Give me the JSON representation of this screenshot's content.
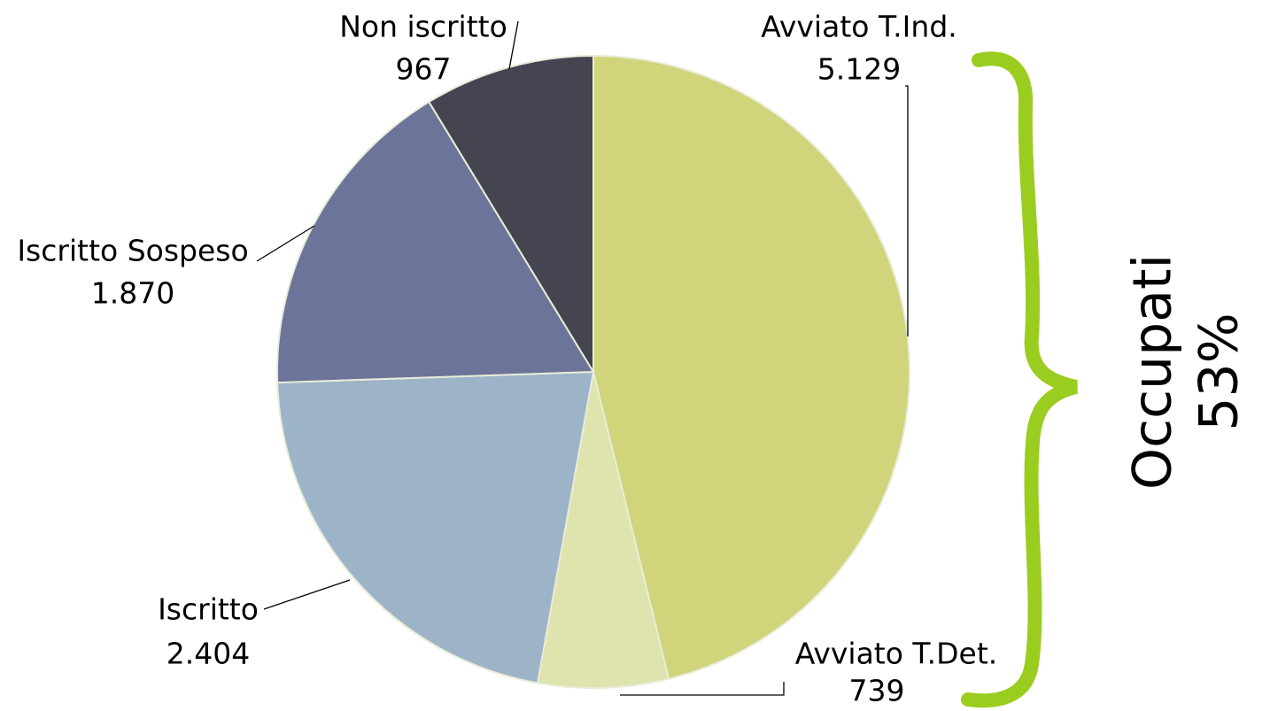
{
  "chart_data": {
    "type": "pie",
    "categories": [
      "Avviato T.Ind.",
      "Avviato T.Det.",
      "Iscritto",
      "Iscritto Sospeso",
      "Non iscritto"
    ],
    "values": [
      5129,
      739,
      2404,
      1870,
      967
    ],
    "value_labels": [
      "5.129",
      "739",
      "2.404",
      "1.870",
      "967"
    ],
    "colors": [
      "#d0d47a",
      "#dfe3ad",
      "#9db3c8",
      "#6c7599",
      "#454552"
    ],
    "annotation": [
      "Occupati",
      "53%"
    ]
  }
}
